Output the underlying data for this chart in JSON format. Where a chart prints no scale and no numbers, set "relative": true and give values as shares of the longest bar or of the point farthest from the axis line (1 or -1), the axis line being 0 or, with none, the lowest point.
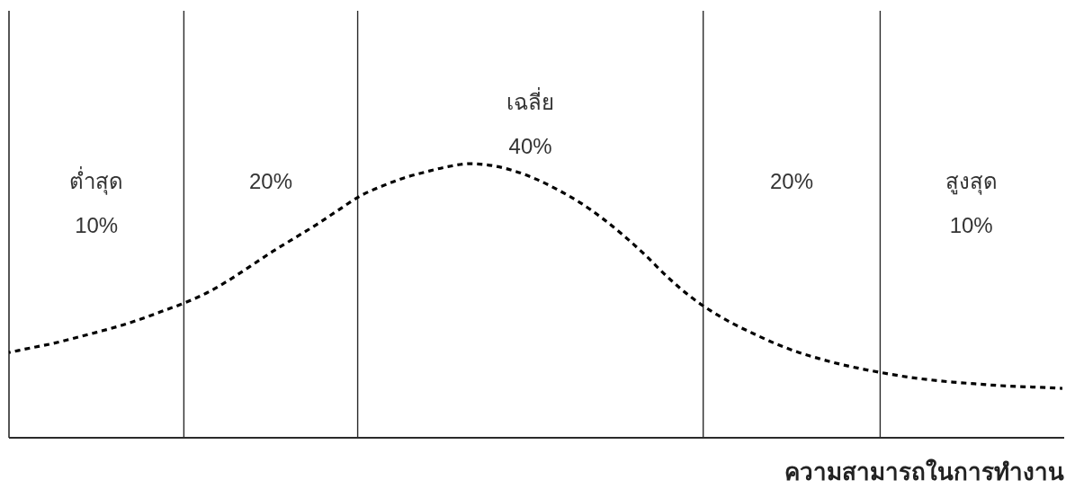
{
  "chart_data": {
    "type": "line",
    "xlabel": "ความสามารถในการทำงาน",
    "relative": true,
    "line_style": "dashed",
    "categories": [
      null,
      null,
      null,
      null,
      null,
      null,
      null,
      null,
      null,
      null,
      null,
      null,
      null,
      null,
      null,
      null,
      null,
      null,
      null,
      null,
      null,
      null,
      null,
      null,
      null,
      null,
      null,
      null,
      null,
      null,
      null,
      null,
      null,
      null,
      null,
      null,
      null,
      null,
      null,
      null,
      null,
      null,
      null,
      null,
      null,
      null,
      null,
      null,
      null
    ],
    "series": [
      {
        "color": "#000000",
        "values": [
          0.311,
          0.328,
          0.344,
          0.364,
          0.385,
          0.407,
          0.433,
          0.462,
          0.492,
          0.528,
          0.574,
          0.626,
          0.679,
          0.728,
          0.777,
          0.83,
          0.882,
          0.918,
          0.948,
          0.97,
          0.989,
          1,
          0.993,
          0.974,
          0.944,
          0.905,
          0.859,
          0.803,
          0.738,
          0.666,
          0.587,
          0.518,
          0.462,
          0.416,
          0.377,
          0.341,
          0.311,
          0.287,
          0.266,
          0.249,
          0.234,
          0.221,
          0.211,
          0.203,
          0.197,
          0.191,
          0.187,
          0.184,
          0.18
        ]
      }
    ],
    "annotations": [
      "ต่ำสุด\n10%",
      "20%",
      "เฉลี่ย\n40%",
      "20%",
      "สูงสุด\n10%"
    ]
  }
}
